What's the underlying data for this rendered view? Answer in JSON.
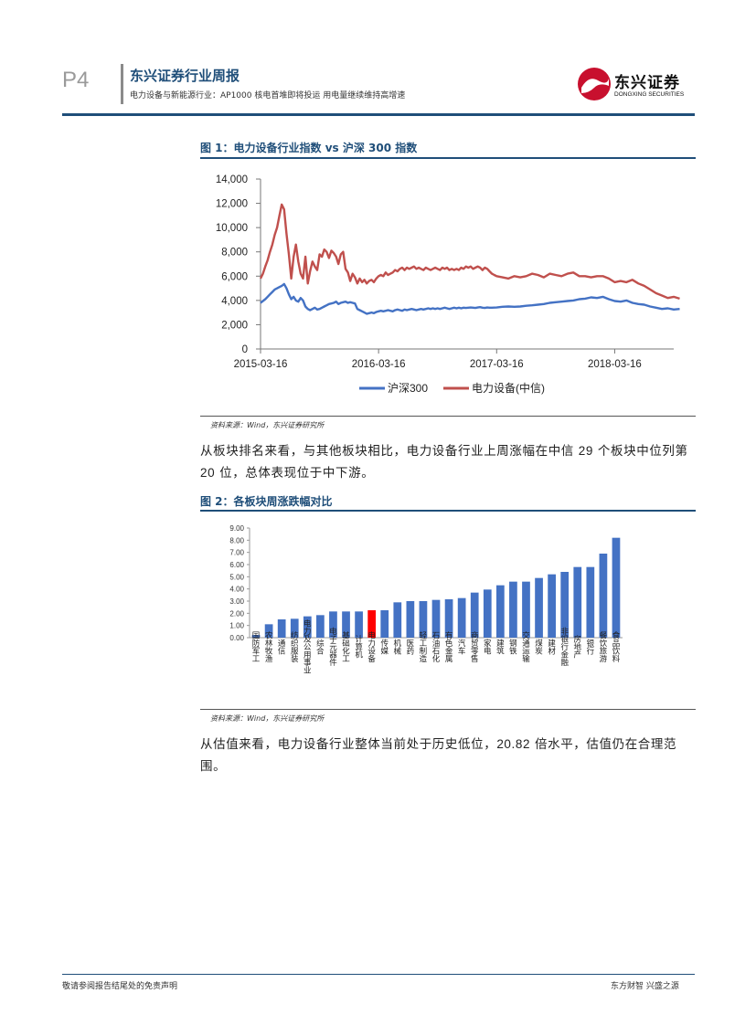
{
  "header": {
    "page_number": "P4",
    "report_title": "东兴证券行业周报",
    "report_subtitle": "电力设备与新能源行业：AP1000 核电首堆即将投运  用电量继续维持高增速",
    "logo_cn": "东兴证券",
    "logo_en": "DONGXING SECURITIES"
  },
  "figure1": {
    "title": "图 1：电力设备行业指数 vs 沪深 300 指数",
    "source": "资料来源：Wind，东兴证券研究所"
  },
  "paragraph1": {
    "text_a": "从板块排名来看，与其他板块相比，电力设备行业上周涨幅在中信 ",
    "num_a": "29",
    "text_b": " 个板块中位列第 ",
    "num_b": "20",
    "text_c": " 位，总体表现位于中下游。"
  },
  "figure2": {
    "title": "图 2：各板块周涨跌幅对比",
    "source": "资料来源：Wind，东兴证券研究所"
  },
  "paragraph2": {
    "text_a": "从估值来看，电力设备行业整体当前处于历史低位，",
    "num_a": "20.82",
    "text_b": " 倍水平，估值仍在合理范围。"
  },
  "footer": {
    "left": "敬请参阅报告结尾处的免责声明",
    "right": "东方财智  兴盛之源"
  },
  "chart_data": [
    {
      "type": "line",
      "y_tick_labels": [
        "0",
        "2,000",
        "4,000",
        "6,000",
        "8,000",
        "10,000",
        "12,000",
        "14,000"
      ],
      "ylim": [
        0,
        14000
      ],
      "x_tick_labels": [
        "2015-03-16",
        "2016-03-16",
        "2017-03-16",
        "2018-03-16"
      ],
      "x_range": [
        "2015-03-16",
        "2018-09-15"
      ],
      "legend_position": "bottom",
      "series": [
        {
          "name": "沪深300",
          "color": "#4472c4",
          "x": [
            0,
            0.02,
            0.04,
            0.06,
            0.08,
            0.1,
            0.12,
            0.14,
            0.16,
            0.18,
            0.2,
            0.22,
            0.24,
            0.26,
            0.28,
            0.3,
            0.32,
            0.34,
            0.36,
            0.38,
            0.4,
            0.42,
            0.44,
            0.46,
            0.48,
            0.5,
            0.52,
            0.54,
            0.56,
            0.58,
            0.6,
            0.62,
            0.64,
            0.66,
            0.68,
            0.7,
            0.72,
            0.74,
            0.76,
            0.78,
            0.8,
            0.82,
            0.84,
            0.86,
            0.88,
            0.9,
            0.92,
            0.94,
            0.96,
            0.98,
            1.0,
            1.02,
            1.04,
            1.06,
            1.08,
            1.1,
            1.12,
            1.14,
            1.16,
            1.18,
            1.2,
            1.22,
            1.24,
            1.26,
            1.28,
            1.3,
            1.32,
            1.34,
            1.36,
            1.38,
            1.4,
            1.42,
            1.44,
            1.46,
            1.48,
            1.5,
            1.52,
            1.54,
            1.56,
            1.58,
            1.6,
            1.62,
            1.64,
            1.66,
            1.68,
            1.7,
            1.72,
            1.74,
            1.76,
            1.78,
            1.8,
            1.82,
            1.84,
            1.86,
            1.88,
            1.9,
            1.92,
            1.94,
            1.96,
            1.98,
            2.0,
            2.05,
            2.1,
            2.15,
            2.2,
            2.25,
            2.3,
            2.35,
            2.4,
            2.45,
            2.5,
            2.55,
            2.6,
            2.65,
            2.7,
            2.75,
            2.8,
            2.85,
            2.9,
            2.95,
            3.0,
            3.05,
            3.1,
            3.15,
            3.2,
            3.25,
            3.3,
            3.35,
            3.4,
            3.45,
            3.5,
            3.55
          ],
          "y": [
            3800,
            3950,
            4100,
            4300,
            4500,
            4700,
            4900,
            5000,
            5100,
            5200,
            5350,
            5000,
            4500,
            4100,
            4300,
            4000,
            3900,
            4200,
            4000,
            3500,
            3300,
            3200,
            3300,
            3400,
            3250,
            3300,
            3400,
            3500,
            3600,
            3700,
            3750,
            3800,
            3900,
            3700,
            3800,
            3850,
            3900,
            3800,
            3850,
            3800,
            3750,
            3300,
            3200,
            3100,
            3000,
            2900,
            2950,
            3000,
            2950,
            3050,
            3100,
            3150,
            3100,
            3150,
            3200,
            3150,
            3100,
            3200,
            3250,
            3200,
            3150,
            3250,
            3200,
            3250,
            3300,
            3250,
            3200,
            3250,
            3300,
            3250,
            3300,
            3350,
            3300,
            3350,
            3300,
            3350,
            3300,
            3350,
            3400,
            3350,
            3300,
            3350,
            3400,
            3350,
            3400,
            3350,
            3400,
            3380,
            3400,
            3420,
            3400,
            3380,
            3420,
            3450,
            3400,
            3380,
            3420,
            3400,
            3400,
            3410,
            3420,
            3480,
            3500,
            3480,
            3500,
            3560,
            3600,
            3650,
            3700,
            3800,
            3850,
            3900,
            3950,
            4000,
            4100,
            4150,
            4250,
            4200,
            4300,
            4100,
            3950,
            3900,
            4000,
            3800,
            3700,
            3650,
            3500,
            3400,
            3300,
            3350,
            3250,
            3300
          ]
        },
        {
          "name": "电力设备(中信)",
          "color": "#c0504d",
          "x": [
            0,
            0.02,
            0.04,
            0.06,
            0.08,
            0.1,
            0.12,
            0.14,
            0.16,
            0.18,
            0.2,
            0.22,
            0.24,
            0.26,
            0.28,
            0.3,
            0.32,
            0.34,
            0.36,
            0.38,
            0.4,
            0.42,
            0.44,
            0.46,
            0.48,
            0.5,
            0.52,
            0.54,
            0.56,
            0.58,
            0.6,
            0.62,
            0.64,
            0.66,
            0.68,
            0.7,
            0.72,
            0.74,
            0.76,
            0.78,
            0.8,
            0.82,
            0.84,
            0.86,
            0.88,
            0.9,
            0.92,
            0.94,
            0.96,
            0.98,
            1.0,
            1.02,
            1.04,
            1.06,
            1.08,
            1.1,
            1.12,
            1.14,
            1.16,
            1.18,
            1.2,
            1.22,
            1.24,
            1.26,
            1.28,
            1.3,
            1.32,
            1.34,
            1.36,
            1.38,
            1.4,
            1.42,
            1.44,
            1.46,
            1.48,
            1.5,
            1.52,
            1.54,
            1.56,
            1.58,
            1.6,
            1.62,
            1.64,
            1.66,
            1.68,
            1.7,
            1.72,
            1.74,
            1.76,
            1.78,
            1.8,
            1.82,
            1.84,
            1.86,
            1.88,
            1.9,
            1.92,
            1.94,
            1.96,
            1.98,
            2.0,
            2.05,
            2.1,
            2.15,
            2.2,
            2.25,
            2.3,
            2.35,
            2.4,
            2.45,
            2.5,
            2.55,
            2.6,
            2.65,
            2.7,
            2.75,
            2.8,
            2.85,
            2.9,
            2.95,
            3.0,
            3.05,
            3.1,
            3.15,
            3.2,
            3.25,
            3.3,
            3.35,
            3.4,
            3.45,
            3.5,
            3.55
          ],
          "y": [
            5800,
            6200,
            6800,
            7300,
            8000,
            8600,
            9400,
            10000,
            11000,
            11900,
            11500,
            9500,
            7800,
            5800,
            7600,
            8600,
            7200,
            6200,
            5800,
            7600,
            5400,
            6400,
            7200,
            6800,
            6500,
            7800,
            7600,
            8200,
            8000,
            7500,
            8100,
            7900,
            7600,
            7000,
            7800,
            8000,
            6600,
            6300,
            5600,
            6200,
            5900,
            5400,
            5800,
            5500,
            5700,
            5400,
            5600,
            5700,
            5500,
            5800,
            6000,
            6100,
            6000,
            6300,
            6100,
            6200,
            6300,
            6500,
            6400,
            6600,
            6700,
            6500,
            6700,
            6600,
            6700,
            6800,
            6600,
            6700,
            6600,
            6500,
            6700,
            6600,
            6500,
            6600,
            6700,
            6600,
            6500,
            6700,
            6600,
            6700,
            6500,
            6600,
            6500,
            6600,
            6500,
            6700,
            6600,
            6800,
            6700,
            6800,
            6600,
            6700,
            6800,
            6700,
            6500,
            6700,
            6600,
            6400,
            6200,
            6100,
            6000,
            5900,
            5800,
            6000,
            5900,
            6000,
            6200,
            6100,
            5900,
            6200,
            6100,
            6000,
            6200,
            6300,
            6000,
            6000,
            5900,
            6000,
            6000,
            5800,
            5500,
            5600,
            5500,
            5700,
            5400,
            5200,
            4900,
            4600,
            4400,
            4200,
            4300,
            4150
          ]
        }
      ]
    },
    {
      "type": "bar",
      "y_tick_labels": [
        "0.00",
        "1.00",
        "2.00",
        "3.00",
        "4.00",
        "5.00",
        "6.00",
        "7.00",
        "8.00",
        "9.00"
      ],
      "ylim": [
        0,
        9
      ],
      "highlight_category": "电力设备",
      "bar_color": "#4472c4",
      "highlight_color": "#ff0000",
      "categories": [
        "国防军工",
        "农林牧渔",
        "通信",
        "纺织服装",
        "电力及公用事业",
        "综合",
        "电子元器件",
        "基础化工",
        "计算机",
        "电力设备",
        "传媒",
        "机械",
        "医药",
        "轻工制造",
        "石油石化",
        "有色金属",
        "汽车",
        "商贸零售",
        "家电",
        "建筑",
        "钢铁",
        "交通运输",
        "煤炭",
        "建材",
        "非银行金融",
        "房地产",
        "银行",
        "餐饮旅游",
        "食品饮料"
      ],
      "values": [
        0.22,
        1.1,
        1.5,
        1.55,
        1.75,
        1.85,
        2.15,
        2.15,
        2.15,
        2.25,
        2.25,
        2.9,
        3.0,
        3.0,
        3.1,
        3.15,
        3.25,
        3.7,
        3.95,
        4.3,
        4.6,
        4.6,
        4.9,
        5.2,
        5.4,
        5.8,
        5.8,
        6.9,
        8.2
      ]
    }
  ]
}
